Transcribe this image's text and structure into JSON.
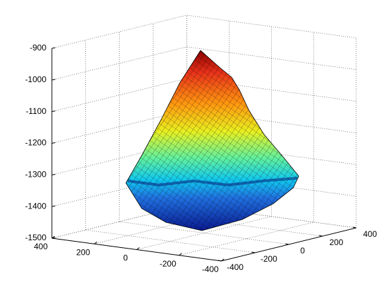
{
  "chart_data": {
    "type": "surface",
    "xlim": [
      -400,
      400
    ],
    "xticks": [
      -400,
      -200,
      0,
      200,
      400
    ],
    "ylim": [
      -400,
      400
    ],
    "yticks": [
      -400,
      -200,
      0,
      200,
      400
    ],
    "zlim": [
      -1500,
      -900
    ],
    "zticks": [
      -1500,
      -1400,
      -1300,
      -1200,
      -1100,
      -1000,
      -900
    ],
    "grid": true
  }
}
